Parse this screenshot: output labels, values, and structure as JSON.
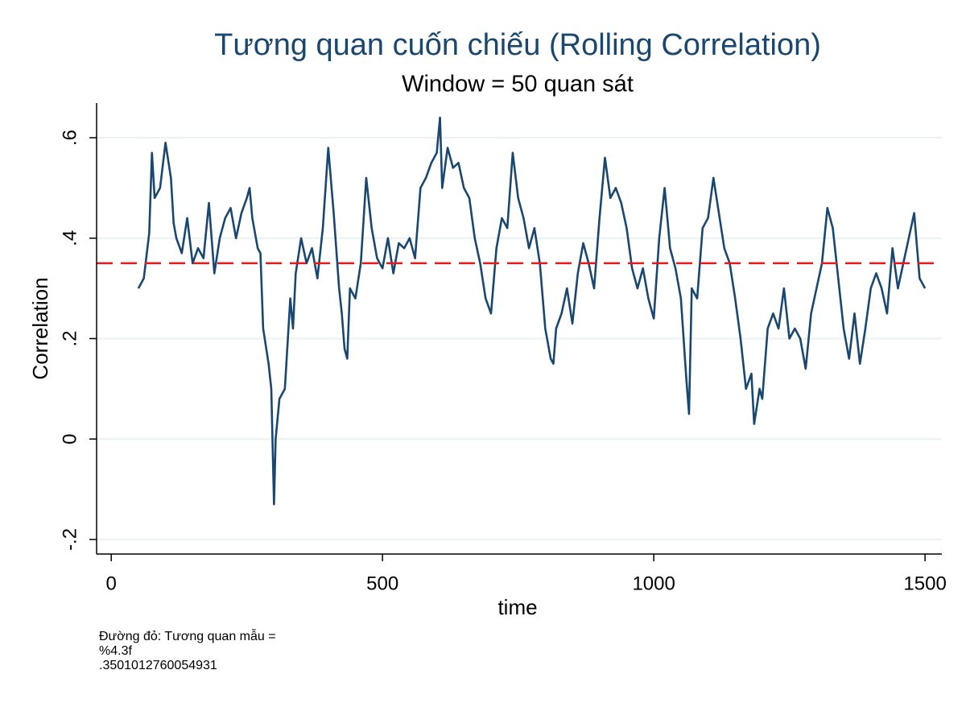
{
  "chart_data": {
    "type": "line",
    "title": "Tương quan cuốn chiếu (Rolling Correlation)",
    "subtitle": "Window = 50 quan sát",
    "x_label": "time",
    "y_label": "Correlation",
    "x": [
      50,
      60,
      70,
      75,
      80,
      90,
      100,
      110,
      115,
      120,
      130,
      140,
      150,
      160,
      170,
      180,
      190,
      200,
      210,
      220,
      230,
      240,
      250,
      255,
      260,
      270,
      275,
      280,
      290,
      295,
      300,
      303,
      310,
      320,
      330,
      335,
      340,
      350,
      360,
      370,
      380,
      390,
      400,
      410,
      420,
      425,
      430,
      435,
      440,
      450,
      460,
      470,
      480,
      490,
      500,
      510,
      520,
      530,
      540,
      550,
      560,
      570,
      580,
      590,
      600,
      606,
      610,
      620,
      630,
      640,
      650,
      660,
      670,
      680,
      690,
      700,
      710,
      720,
      730,
      740,
      750,
      760,
      770,
      780,
      790,
      800,
      810,
      815,
      820,
      830,
      840,
      850,
      860,
      870,
      880,
      890,
      900,
      910,
      920,
      930,
      940,
      950,
      960,
      970,
      980,
      990,
      1000,
      1010,
      1020,
      1030,
      1040,
      1050,
      1060,
      1065,
      1070,
      1080,
      1090,
      1100,
      1110,
      1120,
      1130,
      1140,
      1150,
      1160,
      1170,
      1180,
      1185,
      1195,
      1200,
      1210,
      1220,
      1230,
      1240,
      1250,
      1260,
      1270,
      1280,
      1290,
      1300,
      1310,
      1320,
      1330,
      1340,
      1350,
      1360,
      1370,
      1380,
      1390,
      1400,
      1410,
      1420,
      1430,
      1440,
      1450,
      1460,
      1470,
      1480,
      1490,
      1500
    ],
    "values": [
      0.3,
      0.32,
      0.41,
      0.57,
      0.48,
      0.5,
      0.59,
      0.52,
      0.43,
      0.4,
      0.37,
      0.44,
      0.35,
      0.38,
      0.36,
      0.47,
      0.33,
      0.4,
      0.44,
      0.46,
      0.4,
      0.45,
      0.48,
      0.5,
      0.44,
      0.38,
      0.37,
      0.22,
      0.15,
      0.1,
      -0.13,
      0.0,
      0.08,
      0.1,
      0.28,
      0.22,
      0.33,
      0.4,
      0.35,
      0.38,
      0.32,
      0.42,
      0.58,
      0.45,
      0.3,
      0.25,
      0.18,
      0.16,
      0.3,
      0.28,
      0.35,
      0.52,
      0.42,
      0.36,
      0.34,
      0.4,
      0.33,
      0.39,
      0.38,
      0.4,
      0.36,
      0.5,
      0.52,
      0.55,
      0.57,
      0.64,
      0.5,
      0.58,
      0.54,
      0.55,
      0.5,
      0.48,
      0.4,
      0.35,
      0.28,
      0.25,
      0.38,
      0.44,
      0.42,
      0.57,
      0.48,
      0.44,
      0.38,
      0.42,
      0.35,
      0.22,
      0.16,
      0.15,
      0.22,
      0.25,
      0.3,
      0.23,
      0.33,
      0.39,
      0.35,
      0.3,
      0.44,
      0.56,
      0.48,
      0.5,
      0.47,
      0.42,
      0.34,
      0.3,
      0.34,
      0.28,
      0.24,
      0.4,
      0.5,
      0.38,
      0.34,
      0.28,
      0.12,
      0.05,
      0.3,
      0.28,
      0.42,
      0.44,
      0.52,
      0.45,
      0.38,
      0.35,
      0.28,
      0.2,
      0.1,
      0.13,
      0.03,
      0.1,
      0.08,
      0.22,
      0.25,
      0.22,
      0.3,
      0.2,
      0.22,
      0.2,
      0.14,
      0.25,
      0.3,
      0.35,
      0.46,
      0.42,
      0.32,
      0.22,
      0.16,
      0.25,
      0.15,
      0.22,
      0.3,
      0.33,
      0.3,
      0.25,
      0.38,
      0.3,
      0.35,
      0.4,
      0.45,
      0.32,
      0.3
    ],
    "color": "#1a476f",
    "hline": {
      "value": 0.3501012760054931,
      "color": "#e41a1c"
    },
    "xlim": [
      -27,
      1531
    ],
    "ylim": [
      -0.229,
      0.669
    ],
    "xticks": [
      0,
      500,
      1000,
      1500
    ],
    "yticks": [
      {
        "value": -0.2,
        "label": "-.2"
      },
      0,
      {
        "value": 0.2,
        "label": ".2"
      },
      {
        "value": 0.4,
        "label": ".4"
      },
      {
        "value": 0.6,
        "label": ".6"
      }
    ],
    "grid": true,
    "note": [
      "Đường đỏ: Tương quan mẫu =",
      "%4.3f",
      ".3501012760054931"
    ]
  }
}
